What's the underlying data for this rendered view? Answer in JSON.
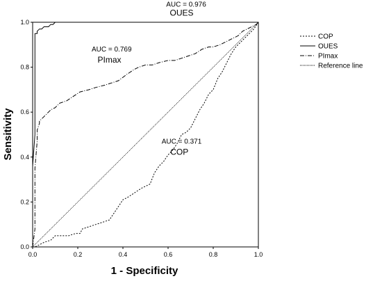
{
  "chart_data": {
    "type": "line",
    "xlabel": "1 - Specificity",
    "ylabel": "Sensitivity",
    "xlim": [
      0,
      1
    ],
    "ylim": [
      0,
      1
    ],
    "xticks": [
      "0.0",
      "0.2",
      "0.4",
      "0.6",
      "0.8",
      "1.0"
    ],
    "yticks": [
      "0.0",
      "0.2",
      "0.4",
      "0.6",
      "0.8",
      "1.0"
    ],
    "grid": false,
    "legend_position": "right",
    "series": [
      {
        "name": "COP",
        "dash": "2,2",
        "x": [
          0,
          0.01,
          0.03,
          0.05,
          0.08,
          0.1,
          0.13,
          0.16,
          0.19,
          0.21,
          0.22,
          0.25,
          0.28,
          0.31,
          0.34,
          0.36,
          0.38,
          0.4,
          0.42,
          0.45,
          0.48,
          0.5,
          0.52,
          0.54,
          0.56,
          0.58,
          0.6,
          0.62,
          0.64,
          0.66,
          0.68,
          0.7,
          0.72,
          0.74,
          0.76,
          0.78,
          0.8,
          0.82,
          0.84,
          0.86,
          0.88,
          0.9,
          0.92,
          0.94,
          0.96,
          0.98,
          1.0
        ],
        "y": [
          0,
          0.0,
          0.01,
          0.02,
          0.03,
          0.05,
          0.05,
          0.05,
          0.06,
          0.06,
          0.08,
          0.09,
          0.1,
          0.11,
          0.12,
          0.15,
          0.18,
          0.21,
          0.22,
          0.24,
          0.26,
          0.27,
          0.28,
          0.33,
          0.36,
          0.38,
          0.41,
          0.43,
          0.46,
          0.5,
          0.51,
          0.53,
          0.57,
          0.61,
          0.64,
          0.68,
          0.7,
          0.75,
          0.78,
          0.82,
          0.86,
          0.89,
          0.91,
          0.93,
          0.95,
          0.97,
          1.0
        ]
      },
      {
        "name": "OUES",
        "dash": "",
        "x": [
          0,
          0.0,
          0.01,
          0.01,
          0.02,
          0.02,
          0.03,
          0.04,
          0.05,
          0.06,
          0.07,
          0.08,
          0.09,
          0.1,
          0.12,
          0.2,
          0.4,
          0.6,
          0.8,
          1.0
        ],
        "y": [
          0,
          0.36,
          0.5,
          0.95,
          0.95,
          0.96,
          0.97,
          0.97,
          0.98,
          0.98,
          0.98,
          0.99,
          0.99,
          1.0,
          1.0,
          1.0,
          1.0,
          1.0,
          1.0,
          1.0
        ]
      },
      {
        "name": "PImax",
        "dash": "6,2,1,2",
        "x": [
          0,
          0.01,
          0.01,
          0.02,
          0.02,
          0.03,
          0.03,
          0.04,
          0.05,
          0.06,
          0.07,
          0.08,
          0.1,
          0.12,
          0.15,
          0.18,
          0.21,
          0.25,
          0.28,
          0.32,
          0.35,
          0.38,
          0.42,
          0.45,
          0.47,
          0.5,
          0.53,
          0.56,
          0.6,
          0.63,
          0.66,
          0.69,
          0.72,
          0.75,
          0.78,
          0.8,
          0.83,
          0.85,
          0.87,
          0.89,
          0.91,
          0.93,
          0.95,
          0.97,
          0.99,
          1.0
        ],
        "y": [
          0,
          0.08,
          0.35,
          0.47,
          0.52,
          0.55,
          0.56,
          0.57,
          0.58,
          0.59,
          0.6,
          0.61,
          0.62,
          0.64,
          0.65,
          0.67,
          0.69,
          0.7,
          0.71,
          0.72,
          0.73,
          0.74,
          0.77,
          0.79,
          0.8,
          0.81,
          0.81,
          0.82,
          0.83,
          0.83,
          0.84,
          0.85,
          0.86,
          0.88,
          0.89,
          0.89,
          0.9,
          0.91,
          0.92,
          0.93,
          0.94,
          0.96,
          0.97,
          0.98,
          0.99,
          1.0
        ]
      },
      {
        "name": "Reference line",
        "dash": "1,1",
        "x": [
          0,
          1
        ],
        "y": [
          0,
          1
        ]
      }
    ],
    "annotations": [
      {
        "auc": "AUC = 0.976",
        "label": "OUES",
        "auc_pos": [
          0.68,
          1.07
        ],
        "label_pos": [
          0.66,
          1.03
        ]
      },
      {
        "auc": "AUC = 0.769",
        "label": "PImax",
        "auc_pos": [
          0.35,
          0.87
        ],
        "label_pos": [
          0.34,
          0.82
        ]
      },
      {
        "auc": "AUC = 0.371",
        "label": "COP",
        "auc_pos": [
          0.66,
          0.46
        ],
        "label_pos": [
          0.65,
          0.41
        ]
      }
    ]
  }
}
